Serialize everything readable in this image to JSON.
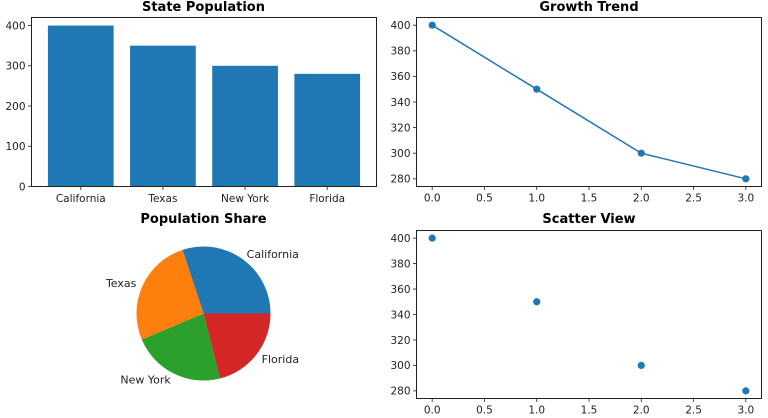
{
  "chart_data": [
    {
      "type": "bar",
      "title": "State Population",
      "categories": [
        "California",
        "Texas",
        "New York",
        "Florida"
      ],
      "values": [
        400,
        350,
        300,
        280
      ],
      "xlabel": "",
      "ylabel": "",
      "ylim": [
        0,
        420
      ],
      "yticks": [
        0,
        100,
        200,
        300,
        400
      ],
      "ytick_labels": [
        "0",
        "100",
        "200",
        "300",
        "400"
      ],
      "color": "#1f77b4",
      "grid": false
    },
    {
      "type": "line",
      "title": "Growth Trend",
      "x": [
        0,
        1,
        2,
        3
      ],
      "y": [
        400,
        350,
        300,
        280
      ],
      "xlim": [
        -0.15,
        3.15
      ],
      "ylim": [
        274,
        406
      ],
      "xticks": [
        0,
        0.5,
        1,
        1.5,
        2,
        2.5,
        3
      ],
      "xtick_labels": [
        "0.0",
        "0.5",
        "1.0",
        "1.5",
        "2.0",
        "2.5",
        "3.0"
      ],
      "yticks": [
        280,
        300,
        320,
        340,
        360,
        380,
        400
      ],
      "ytick_labels": [
        "280",
        "300",
        "320",
        "340",
        "360",
        "380",
        "400"
      ],
      "markers": true,
      "color": "#1f77b4",
      "grid": false
    },
    {
      "type": "pie",
      "title": "Population Share",
      "labels": [
        "California",
        "Texas",
        "New York",
        "Florida"
      ],
      "values": [
        400,
        350,
        300,
        280
      ],
      "colors": [
        "#1f77b4",
        "#ff7f0e",
        "#2ca02c",
        "#d62728"
      ],
      "start_angle": 0
    },
    {
      "type": "scatter",
      "title": "Scatter View",
      "x": [
        0,
        1,
        2,
        3
      ],
      "y": [
        400,
        350,
        300,
        280
      ],
      "xlim": [
        -0.15,
        3.15
      ],
      "ylim": [
        274,
        406
      ],
      "xticks": [
        0,
        0.5,
        1,
        1.5,
        2,
        2.5,
        3
      ],
      "xtick_labels": [
        "0.0",
        "0.5",
        "1.0",
        "1.5",
        "2.0",
        "2.5",
        "3.0"
      ],
      "yticks": [
        280,
        300,
        320,
        340,
        360,
        380,
        400
      ],
      "ytick_labels": [
        "280",
        "300",
        "320",
        "340",
        "360",
        "380",
        "400"
      ],
      "color": "#1f77b4",
      "grid": false
    }
  ]
}
